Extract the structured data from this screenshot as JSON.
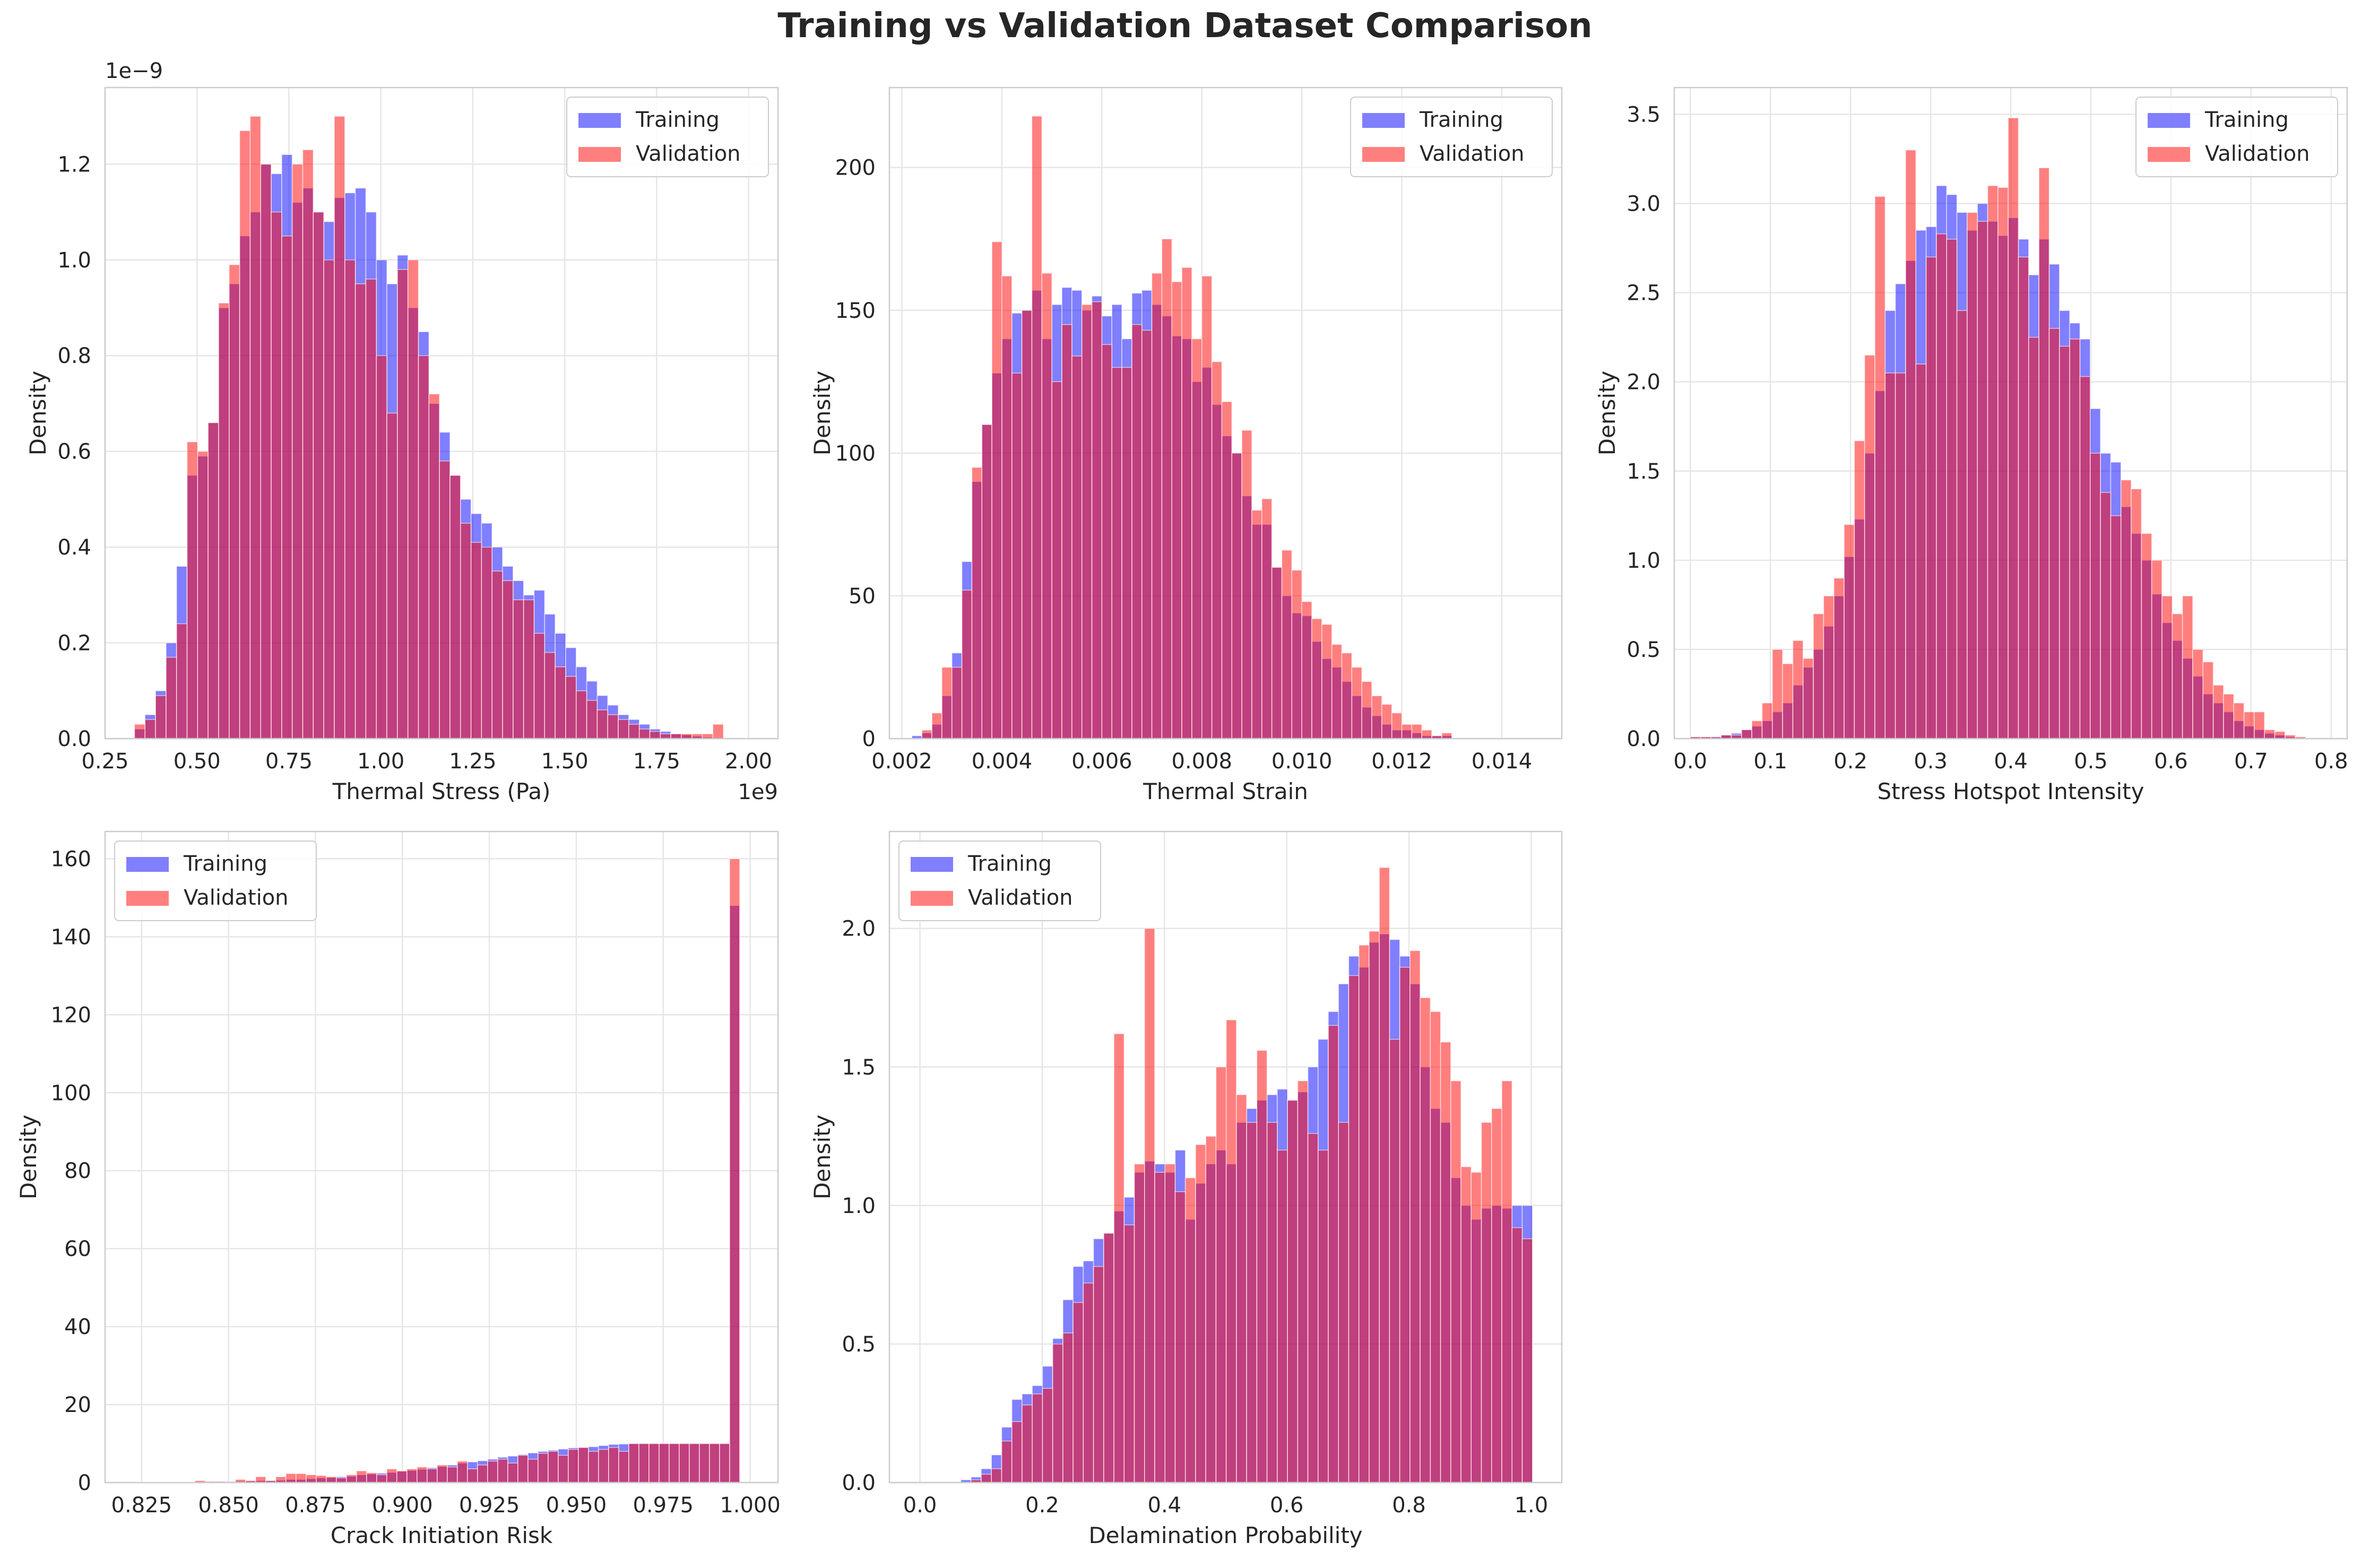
{
  "suptitle": "Training vs Validation Dataset Comparison",
  "colors": {
    "training": "#0000ff",
    "validation": "#ff0000",
    "grid": "#e6e6e6",
    "spine": "#cccccc",
    "text": "#262626"
  },
  "chart_data": [
    {
      "type": "bar",
      "xlabel": "Thermal Stress (Pa)",
      "ylabel": "Density",
      "x_offset_label": "1e9",
      "y_offset_label": "1e−9",
      "xlim": [
        0.25,
        2.08
      ],
      "ylim": [
        0,
        1.36
      ],
      "xticks": [
        0.25,
        0.5,
        0.75,
        1.0,
        1.25,
        1.5,
        1.75,
        2.0
      ],
      "xtick_labels": [
        "0.25",
        "0.50",
        "0.75",
        "1.00",
        "1.25",
        "1.50",
        "1.75",
        "2.00"
      ],
      "yticks": [
        0,
        0.2,
        0.4,
        0.6,
        0.8,
        1.0,
        1.2
      ],
      "ytick_labels": [
        "0.0",
        "0.2",
        "0.4",
        "0.6",
        "0.8",
        "1.0",
        "1.2"
      ],
      "legend": "top-right",
      "series": [
        {
          "name": "Training",
          "start": 0.33,
          "width": 0.0286,
          "values": [
            0.02,
            0.05,
            0.1,
            0.2,
            0.36,
            0.55,
            0.59,
            0.66,
            0.9,
            0.95,
            1.05,
            1.1,
            1.2,
            1.18,
            1.22,
            1.12,
            1.15,
            1.1,
            1.08,
            1.13,
            1.14,
            1.15,
            1.1,
            1.0,
            0.95,
            1.01,
            0.9,
            0.85,
            0.7,
            0.64,
            0.55,
            0.5,
            0.47,
            0.45,
            0.4,
            0.36,
            0.33,
            0.3,
            0.31,
            0.26,
            0.22,
            0.19,
            0.15,
            0.12,
            0.09,
            0.07,
            0.05,
            0.04,
            0.03,
            0.02,
            0.015,
            0.01,
            0.008,
            0.005,
            0.003,
            0.002
          ]
        },
        {
          "name": "Validation",
          "start": 0.33,
          "width": 0.0286,
          "values": [
            0.03,
            0.04,
            0.09,
            0.17,
            0.24,
            0.62,
            0.6,
            0.66,
            0.91,
            0.99,
            1.27,
            1.3,
            1.2,
            1.1,
            1.05,
            1.2,
            1.23,
            1.1,
            1.0,
            1.3,
            1.0,
            0.95,
            0.96,
            0.8,
            0.68,
            0.98,
            1.0,
            0.8,
            0.72,
            0.58,
            0.55,
            0.45,
            0.41,
            0.4,
            0.35,
            0.33,
            0.29,
            0.29,
            0.22,
            0.18,
            0.15,
            0.13,
            0.1,
            0.08,
            0.06,
            0.05,
            0.04,
            0.03,
            0.02,
            0.015,
            0.01,
            0.01,
            0.01,
            0.01,
            0.01,
            0.03
          ]
        }
      ]
    },
    {
      "type": "bar",
      "xlabel": "Thermal Strain",
      "ylabel": "Density",
      "xlim": [
        0.00175,
        0.0152
      ],
      "ylim": [
        0,
        228
      ],
      "xticks": [
        0.002,
        0.004,
        0.006,
        0.008,
        0.01,
        0.012,
        0.014
      ],
      "xtick_labels": [
        "0.002",
        "0.004",
        "0.006",
        "0.008",
        "0.010",
        "0.012",
        "0.014"
      ],
      "yticks": [
        0,
        50,
        100,
        150,
        200
      ],
      "ytick_labels": [
        "0",
        "50",
        "100",
        "150",
        "200"
      ],
      "legend": "top-right",
      "series": [
        {
          "name": "Training",
          "start": 0.0022,
          "width": 0.0002,
          "values": [
            1,
            2,
            5,
            15,
            30,
            62,
            90,
            110,
            128,
            140,
            149,
            150,
            157,
            140,
            152,
            158,
            157,
            150,
            155,
            148,
            152,
            140,
            156,
            157,
            152,
            148,
            141,
            140,
            125,
            130,
            117,
            106,
            100,
            85,
            75,
            75,
            60,
            50,
            44,
            43,
            34,
            28,
            25,
            20,
            15,
            11,
            8,
            5,
            3,
            3,
            2,
            1,
            1,
            1
          ]
        },
        {
          "name": "Validation",
          "start": 0.0022,
          "width": 0.0002,
          "values": [
            0,
            3,
            9,
            25,
            25,
            52,
            95,
            110,
            174,
            162,
            128,
            150,
            218,
            163,
            125,
            145,
            134,
            152,
            153,
            138,
            130,
            130,
            145,
            143,
            163,
            175,
            160,
            165,
            140,
            162,
            132,
            118,
            100,
            108,
            80,
            84,
            60,
            66,
            59,
            48,
            42,
            40,
            33,
            30,
            25,
            20,
            15,
            12,
            9,
            5,
            5,
            3,
            1,
            2
          ]
        }
      ]
    },
    {
      "type": "bar",
      "xlabel": "Stress Hotspot Intensity",
      "ylabel": "Density",
      "xlim": [
        -0.02,
        0.82
      ],
      "ylim": [
        0,
        3.65
      ],
      "xticks": [
        0,
        0.1,
        0.2,
        0.3,
        0.4,
        0.5,
        0.6,
        0.7,
        0.8
      ],
      "xtick_labels": [
        "0.0",
        "0.1",
        "0.2",
        "0.3",
        "0.4",
        "0.5",
        "0.6",
        "0.7",
        "0.8"
      ],
      "yticks": [
        0,
        0.5,
        1.0,
        1.5,
        2.0,
        2.5,
        3.0,
        3.5
      ],
      "ytick_labels": [
        "0.0",
        "0.5",
        "1.0",
        "1.5",
        "2.0",
        "2.5",
        "3.0",
        "3.5"
      ],
      "legend": "top-right",
      "series": [
        {
          "name": "Training",
          "start": 0.0,
          "width": 0.0128,
          "values": [
            0.01,
            0.01,
            0.01,
            0.02,
            0.03,
            0.05,
            0.07,
            0.1,
            0.15,
            0.2,
            0.3,
            0.4,
            0.5,
            0.63,
            0.8,
            1.02,
            1.23,
            1.6,
            1.95,
            2.4,
            2.55,
            2.68,
            2.85,
            2.87,
            3.1,
            3.05,
            2.95,
            2.85,
            3.0,
            2.9,
            2.82,
            2.92,
            2.8,
            2.6,
            2.8,
            2.66,
            2.4,
            2.33,
            2.24,
            1.85,
            1.6,
            1.55,
            1.3,
            1.15,
            1.0,
            0.81,
            0.65,
            0.55,
            0.45,
            0.35,
            0.25,
            0.2,
            0.15,
            0.1,
            0.07,
            0.05,
            0.03,
            0.02,
            0.01,
            0.005
          ]
        },
        {
          "name": "Validation",
          "start": 0.0,
          "width": 0.0128,
          "values": [
            0.01,
            0.01,
            0.01,
            0.02,
            0.02,
            0.05,
            0.1,
            0.2,
            0.5,
            0.42,
            0.55,
            0.45,
            0.7,
            0.8,
            0.9,
            1.2,
            1.67,
            2.15,
            3.04,
            2.05,
            2.05,
            3.3,
            2.1,
            2.7,
            2.83,
            2.8,
            2.4,
            2.95,
            2.9,
            3.1,
            3.09,
            3.48,
            2.7,
            2.25,
            3.2,
            2.3,
            2.2,
            2.24,
            2.03,
            1.6,
            1.38,
            1.25,
            1.45,
            1.4,
            1.15,
            1.0,
            0.8,
            0.7,
            0.8,
            0.5,
            0.43,
            0.3,
            0.25,
            0.2,
            0.15,
            0.15,
            0.05,
            0.04,
            0.02,
            0.01
          ]
        }
      ]
    },
    {
      "type": "bar",
      "xlabel": "Crack Initiation Risk",
      "ylabel": "Density",
      "xlim": [
        0.8145,
        1.008
      ],
      "ylim": [
        0,
        167
      ],
      "xticks": [
        0.825,
        0.85,
        0.875,
        0.9,
        0.925,
        0.95,
        0.975,
        1.0
      ],
      "xtick_labels": [
        "0.825",
        "0.850",
        "0.875",
        "0.900",
        "0.925",
        "0.950",
        "0.975",
        "1.000"
      ],
      "yticks": [
        0,
        20,
        40,
        60,
        80,
        100,
        120,
        140,
        160
      ],
      "ytick_labels": [
        "0",
        "20",
        "40",
        "60",
        "80",
        "100",
        "120",
        "140",
        "160"
      ],
      "legend": "top-left",
      "series": [
        {
          "name": "Training",
          "start": 0.823,
          "width": 0.0029,
          "values": [
            0.1,
            0.1,
            0.1,
            0.1,
            0.1,
            0.1,
            0.2,
            0.2,
            0.2,
            0.3,
            0.3,
            0.4,
            0.5,
            0.5,
            0.6,
            0.8,
            0.8,
            1.0,
            1.2,
            1.3,
            1.5,
            1.6,
            2.0,
            2.2,
            2.4,
            2.6,
            2.9,
            3.1,
            3.4,
            3.8,
            4.1,
            4.5,
            5.0,
            5.3,
            5.6,
            6.0,
            6.5,
            6.8,
            7.2,
            7.6,
            8.0,
            8.3,
            8.6,
            8.9,
            9.0,
            9.2,
            9.5,
            9.8,
            9.9,
            10.0,
            10.0,
            10.0,
            10.0,
            10.0,
            10.0,
            10.0,
            10.0,
            10.0,
            10.0,
            148
          ]
        },
        {
          "name": "Validation",
          "start": 0.823,
          "width": 0.0029,
          "values": [
            0.1,
            0.1,
            0.1,
            0.1,
            0.1,
            0.1,
            0.5,
            0.3,
            0.3,
            0.2,
            0.8,
            0.5,
            1.5,
            0.5,
            1.5,
            2.3,
            2.3,
            2.0,
            1.8,
            1.5,
            1.2,
            2.0,
            3.0,
            2.5,
            2.0,
            3.5,
            3.0,
            3.5,
            4.0,
            3.5,
            4.5,
            4.0,
            5.5,
            3.5,
            4.5,
            5.5,
            6.0,
            5.0,
            7.0,
            6.0,
            7.5,
            8.0,
            7.0,
            8.5,
            9.0,
            8.0,
            8.5,
            9.0,
            8.0,
            10.0,
            10.0,
            10.0,
            10.0,
            10.0,
            10.0,
            10.0,
            10.0,
            10.0,
            10.0,
            160
          ]
        }
      ]
    },
    {
      "type": "bar",
      "xlabel": "Delamination Probability",
      "ylabel": "Density",
      "xlim": [
        -0.05,
        1.05
      ],
      "ylim": [
        0,
        2.35
      ],
      "xticks": [
        0,
        0.2,
        0.4,
        0.6,
        0.8,
        1.0
      ],
      "xtick_labels": [
        "0.0",
        "0.2",
        "0.4",
        "0.6",
        "0.8",
        "1.0"
      ],
      "yticks": [
        0,
        0.5,
        1.0,
        1.5,
        2.0
      ],
      "ytick_labels": [
        "0.0",
        "0.5",
        "1.0",
        "1.5",
        "2.0"
      ],
      "legend": "top-left",
      "series": [
        {
          "name": "Training",
          "start": 0.0,
          "width": 0.0167,
          "values": [
            0.0,
            0.0,
            0.0,
            0.0,
            0.01,
            0.02,
            0.05,
            0.1,
            0.2,
            0.3,
            0.32,
            0.35,
            0.42,
            0.52,
            0.66,
            0.78,
            0.8,
            0.88,
            0.9,
            0.98,
            1.03,
            1.12,
            1.16,
            1.15,
            1.12,
            1.2,
            0.95,
            1.08,
            1.15,
            1.2,
            1.15,
            1.3,
            1.35,
            1.38,
            1.4,
            1.42,
            1.38,
            1.41,
            1.5,
            1.6,
            1.7,
            1.8,
            1.9,
            1.86,
            1.95,
            1.98,
            1.96,
            1.9,
            1.8,
            1.5,
            1.35,
            1.3,
            1.1,
            1.0,
            0.95,
            0.99,
            1.0,
            0.99,
            1.0,
            1.0
          ]
        },
        {
          "name": "Validation",
          "start": 0.0,
          "width": 0.0167,
          "values": [
            0.0,
            0.0,
            0.0,
            0.0,
            0.0,
            0.01,
            0.03,
            0.05,
            0.15,
            0.22,
            0.28,
            0.32,
            0.34,
            0.5,
            0.54,
            0.65,
            0.72,
            0.78,
            0.9,
            1.62,
            0.93,
            1.15,
            2.0,
            1.12,
            1.15,
            1.05,
            1.1,
            1.22,
            1.25,
            1.5,
            1.67,
            1.4,
            1.3,
            1.56,
            1.3,
            1.2,
            1.38,
            1.45,
            1.26,
            1.2,
            1.65,
            1.3,
            1.83,
            1.94,
            1.99,
            2.22,
            1.6,
            1.86,
            1.92,
            1.75,
            1.7,
            1.59,
            1.45,
            1.14,
            1.12,
            1.3,
            1.35,
            1.45,
            0.92,
            0.88
          ]
        }
      ]
    }
  ]
}
